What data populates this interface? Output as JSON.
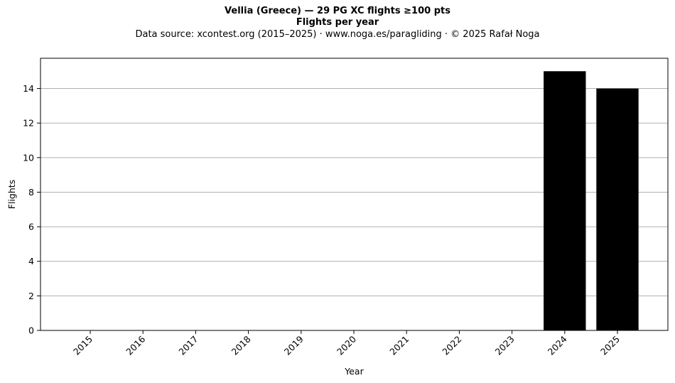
{
  "chart_data": {
    "type": "bar",
    "title": "Vellia (Greece)  —  29 PG XC flights ≥100 pts",
    "subtitle": "Flights per year",
    "source": "Data source: xcontest.org (2015–2025)  ·  www.noga.es/paragliding  ·  © 2025 Rafał Noga",
    "xlabel": "Year",
    "ylabel": "Flights",
    "categories": [
      "2015",
      "2016",
      "2017",
      "2018",
      "2019",
      "2020",
      "2021",
      "2022",
      "2023",
      "2024",
      "2025"
    ],
    "values": [
      0,
      0,
      0,
      0,
      0,
      0,
      0,
      0,
      0,
      15,
      14
    ],
    "ylim": [
      0,
      15.75
    ],
    "yticks": [
      0,
      2,
      4,
      6,
      8,
      10,
      12,
      14
    ],
    "grid": "y",
    "bar_color": "#000000",
    "grid_color": "#b0b0b0",
    "legend": "none"
  }
}
